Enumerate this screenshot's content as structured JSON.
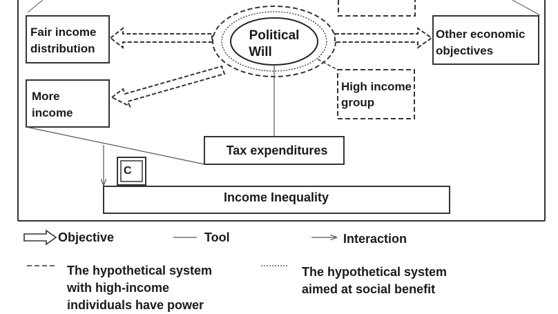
{
  "nodes": {
    "fair_income": {
      "line1": "Fair income",
      "line2": "distribution"
    },
    "political_will": {
      "line1": "Political",
      "line2": "Will"
    },
    "other_econ": {
      "line1": "Other economic",
      "line2": "objectives"
    },
    "more_income": {
      "line1": "More",
      "line2": "income"
    },
    "high_income": {
      "line1": "High income",
      "line2": "group"
    },
    "tax_exp": "Tax expenditures",
    "c_box": "C",
    "income_ineq": "Income Inequality"
  },
  "legend": {
    "objective": "Objective",
    "tool": "Tool",
    "interaction": "Interaction",
    "dashed_line1": "The hypothetical system",
    "dashed_line2": "with high-income",
    "dashed_line3": "individuals have power",
    "dotted_line1": "The hypothetical system",
    "dotted_line2": "aimed at social benefit"
  },
  "colors": {
    "stroke": "#333333",
    "text": "#1a1a1a",
    "background": "#ffffff"
  }
}
